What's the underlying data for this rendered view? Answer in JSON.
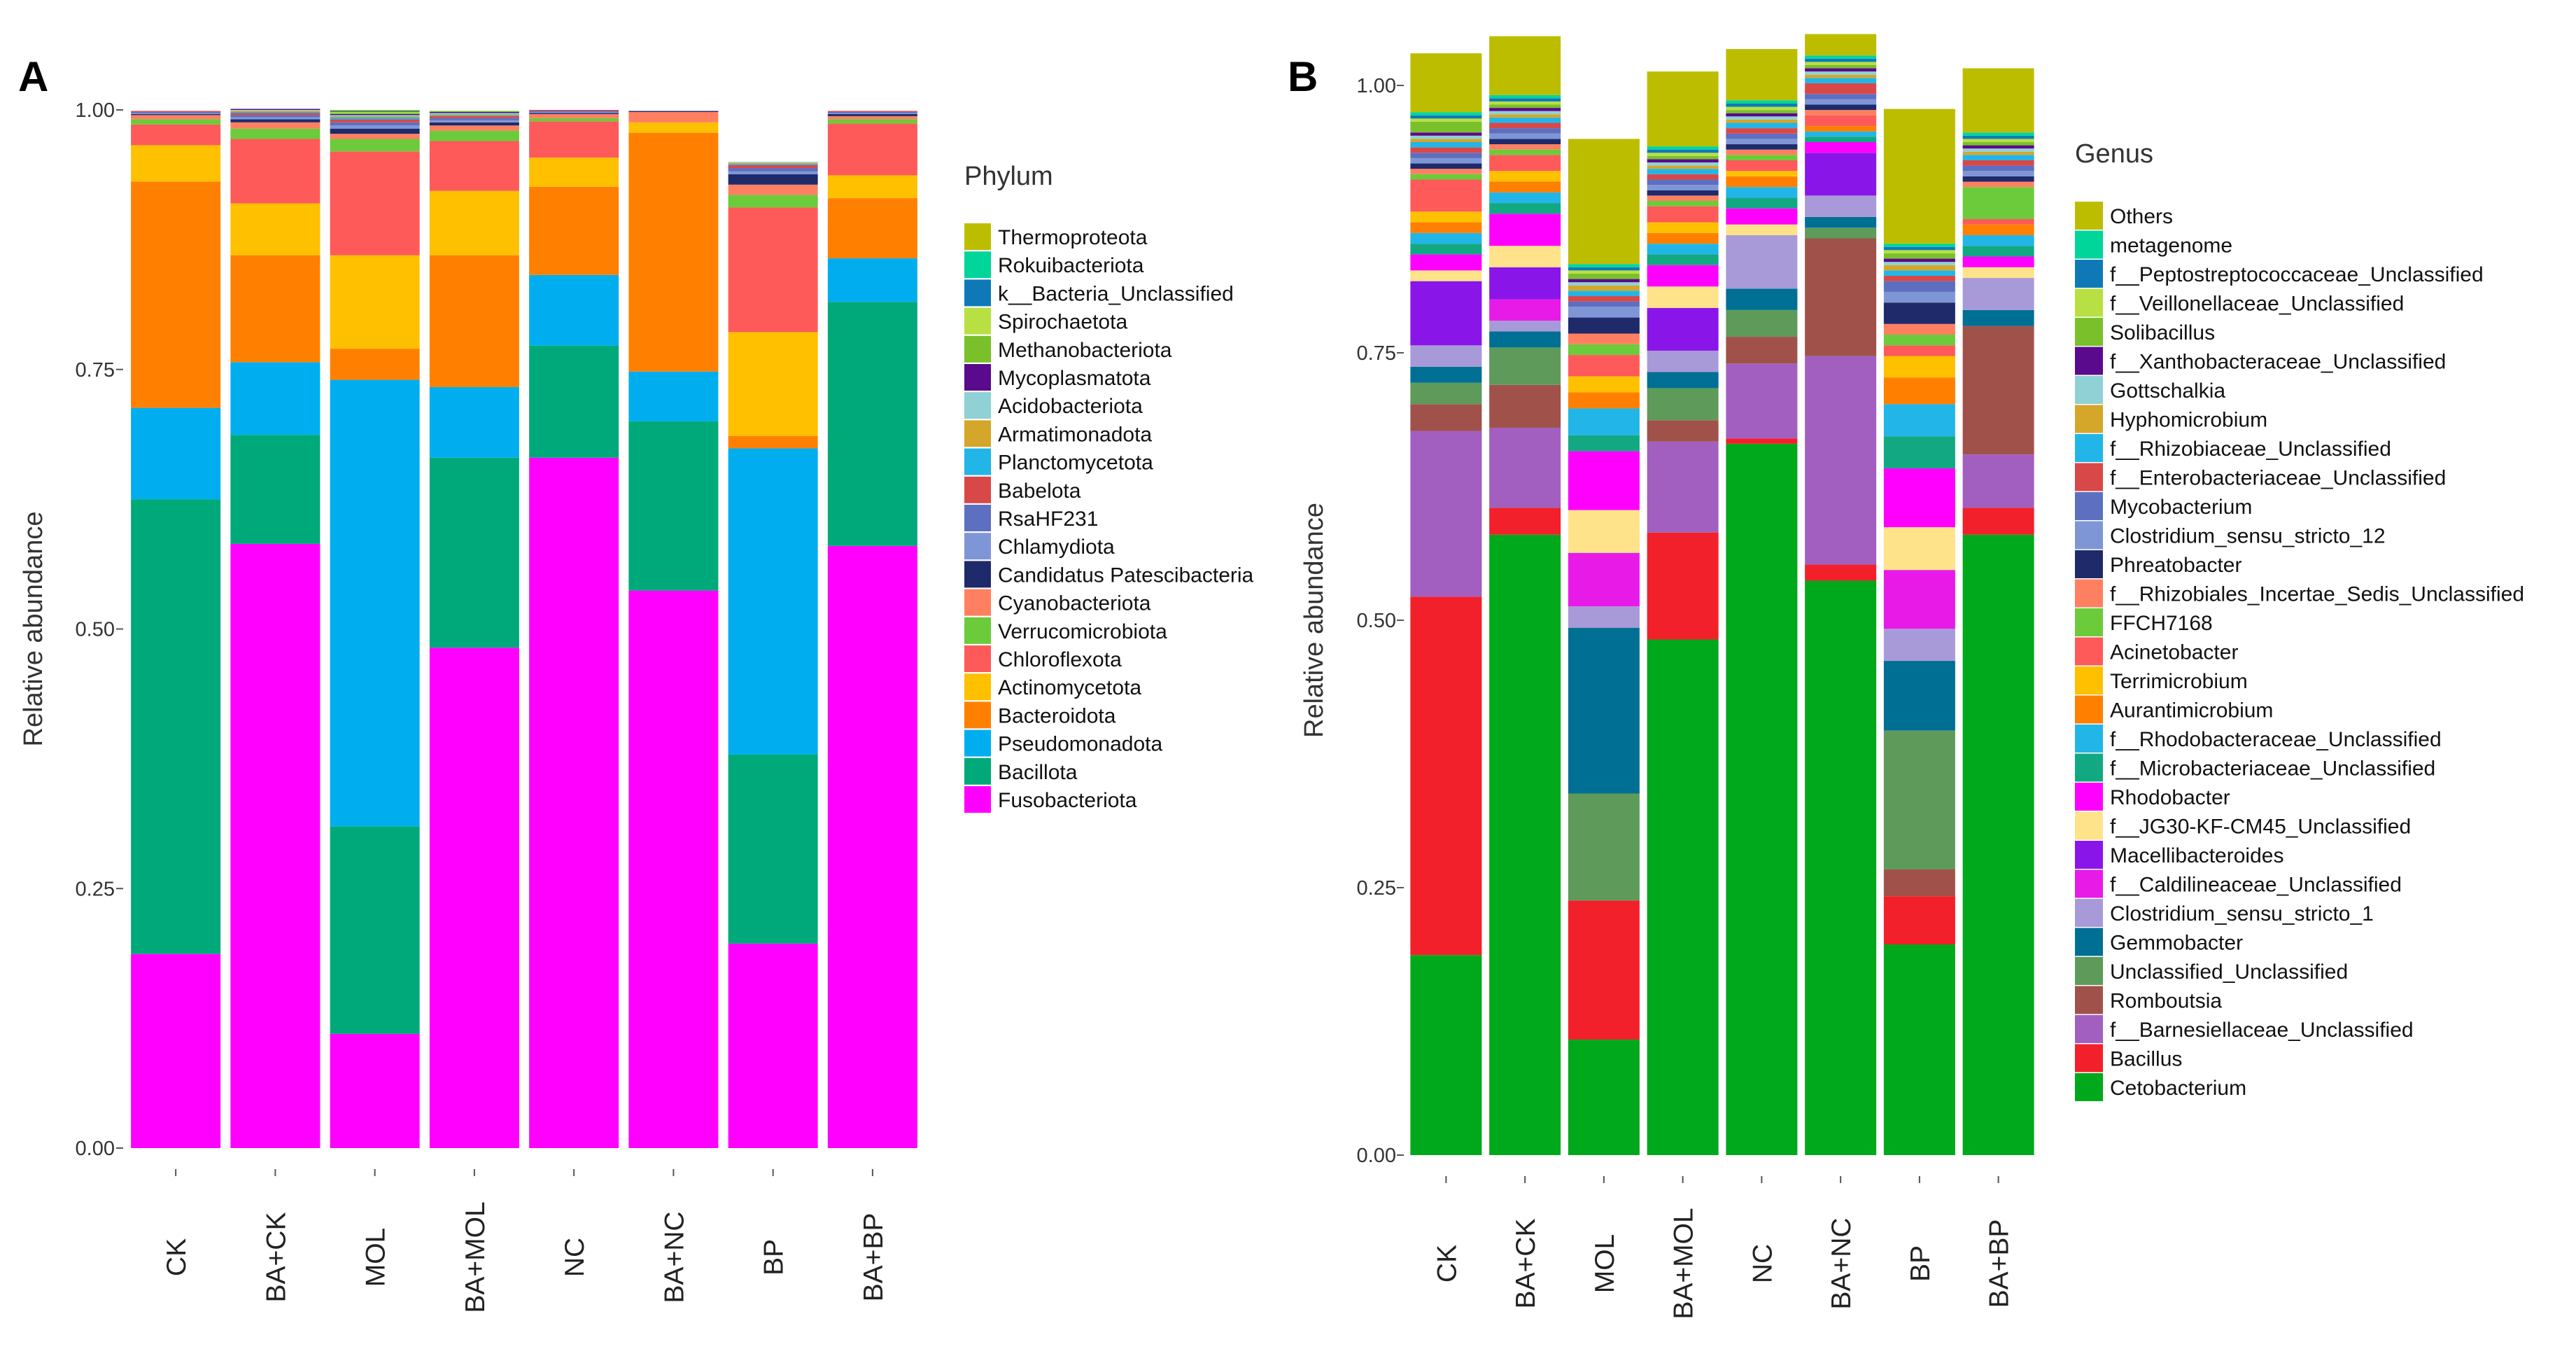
{
  "chart_data": [
    {
      "panel": "A",
      "type": "bar",
      "stacked": true,
      "ylabel": "Relative abundance",
      "ylim": [
        0,
        1
      ],
      "yticks": [
        "0.00",
        "0.25",
        "0.50",
        "0.75",
        "1.00"
      ],
      "categories": [
        "CK",
        "BA+CK",
        "MOL",
        "BA+MOL",
        "NC",
        "BA+NC",
        "BP",
        "BA+BP"
      ],
      "legend_title": "Phylum",
      "legend_position": "right",
      "series": [
        {
          "name": "Fusobacteriota",
          "color": "#FF00FF",
          "values": [
            0.187,
            0.582,
            0.11,
            0.482,
            0.665,
            0.537,
            0.197,
            0.58
          ]
        },
        {
          "name": "Bacillota",
          "color": "#00A97A",
          "values": [
            0.438,
            0.105,
            0.2,
            0.183,
            0.108,
            0.163,
            0.182,
            0.235
          ]
        },
        {
          "name": "Pseudomonadota",
          "color": "#00AEEF",
          "values": [
            0.088,
            0.07,
            0.43,
            0.068,
            0.068,
            0.048,
            0.295,
            0.042
          ]
        },
        {
          "name": "Bacteroidota",
          "color": "#FF8000",
          "values": [
            0.218,
            0.103,
            0.03,
            0.127,
            0.085,
            0.23,
            0.012,
            0.058
          ]
        },
        {
          "name": "Actinomycetota",
          "color": "#FFC000",
          "values": [
            0.035,
            0.05,
            0.09,
            0.062,
            0.028,
            0.01,
            0.1,
            0.022
          ]
        },
        {
          "name": "Chloroflexota",
          "color": "#FF5A5A",
          "values": [
            0.02,
            0.062,
            0.1,
            0.048,
            0.035,
            0.0,
            0.12,
            0.05
          ]
        },
        {
          "name": "Verrucomicrobiota",
          "color": "#6BCB3A",
          "values": [
            0.005,
            0.01,
            0.012,
            0.01,
            0.003,
            0.0,
            0.012,
            0.004
          ]
        },
        {
          "name": "Cyanobacteriota",
          "color": "#FF8060",
          "values": [
            0.004,
            0.006,
            0.005,
            0.005,
            0.004,
            0.01,
            0.01,
            0.003
          ]
        },
        {
          "name": "Candidatus Patescibacteria",
          "color": "#1F2A6B",
          "values": [
            0.001,
            0.003,
            0.005,
            0.003,
            0.001,
            0.001,
            0.01,
            0.002
          ]
        },
        {
          "name": "Chlamydiota",
          "color": "#7F96D6",
          "values": [
            0.001,
            0.002,
            0.003,
            0.002,
            0.001,
            0.0,
            0.003,
            0.001
          ]
        },
        {
          "name": "RsaHF231",
          "color": "#5C6FC0",
          "values": [
            0.001,
            0.002,
            0.003,
            0.002,
            0.001,
            0.0,
            0.003,
            0.001
          ]
        },
        {
          "name": "Babelota",
          "color": "#D94848",
          "values": [
            0.001,
            0.002,
            0.003,
            0.002,
            0.001,
            0.0,
            0.003,
            0.001
          ]
        },
        {
          "name": "Planctomycetota",
          "color": "#22B5E8",
          "values": [
            0.0,
            0.001,
            0.002,
            0.001,
            0.0,
            0.0,
            0.001,
            0.0
          ]
        },
        {
          "name": "Armatimonadota",
          "color": "#D4A62A",
          "values": [
            0.0,
            0.001,
            0.001,
            0.001,
            0.0,
            0.0,
            0.001,
            0.0
          ]
        },
        {
          "name": "Acidobacteriota",
          "color": "#8FD1D4",
          "values": [
            0.0,
            0.001,
            0.001,
            0.001,
            0.0,
            0.0,
            0.001,
            0.0
          ]
        },
        {
          "name": "Mycoplasmatota",
          "color": "#5A0A8C",
          "values": [
            0.0,
            0.001,
            0.001,
            0.001,
            0.0,
            0.0,
            0.0,
            0.0
          ]
        },
        {
          "name": "Methanobacteriota",
          "color": "#7AC02A",
          "values": [
            0.0,
            0.0,
            0.001,
            0.001,
            0.0,
            0.0,
            0.0,
            0.0
          ]
        },
        {
          "name": "Spirochaetota",
          "color": "#B8E042",
          "values": [
            0.0,
            0.0,
            0.001,
            0.0,
            0.0,
            0.0,
            0.0,
            0.0
          ]
        },
        {
          "name": "k__Bacteria_Unclassified",
          "color": "#0F79B8",
          "values": [
            0.0,
            0.0,
            0.001,
            0.0,
            0.0,
            0.0,
            0.0,
            0.0
          ]
        },
        {
          "name": "Rokuibacteriota",
          "color": "#00D59A",
          "values": [
            0.0,
            0.0,
            0.0,
            0.0,
            0.0,
            0.0,
            0.0,
            0.0
          ]
        },
        {
          "name": "Thermoproteota",
          "color": "#BDBD00",
          "values": [
            0.0,
            0.0,
            0.001,
            0.0,
            0.0,
            0.0,
            0.0,
            0.0
          ]
        }
      ]
    },
    {
      "panel": "B",
      "type": "bar",
      "stacked": true,
      "ylabel": "Relative abundance",
      "ylim": [
        0,
        1
      ],
      "yticks": [
        "0.00",
        "0.25",
        "0.50",
        "0.75",
        "1.00"
      ],
      "categories": [
        "CK",
        "BA+CK",
        "MOL",
        "BA+MOL",
        "NC",
        "BA+NC",
        "BP",
        "BA+BP"
      ],
      "legend_title": "Genus",
      "legend_position": "right",
      "series": [
        {
          "name": "Cetobacterium",
          "color": "#00A81B",
          "values": [
            0.187,
            0.58,
            0.108,
            0.482,
            0.665,
            0.537,
            0.197,
            0.58
          ]
        },
        {
          "name": "Bacillus",
          "color": "#F2202A",
          "values": [
            0.335,
            0.025,
            0.13,
            0.1,
            0.005,
            0.015,
            0.045,
            0.025
          ]
        },
        {
          "name": "f__Barnesiellaceae_Unclassified",
          "color": "#A35FC0",
          "values": [
            0.155,
            0.075,
            0.0,
            0.085,
            0.07,
            0.195,
            0.0,
            0.05
          ]
        },
        {
          "name": "Romboutsia",
          "color": "#A0524A",
          "values": [
            0.025,
            0.04,
            0.0,
            0.02,
            0.025,
            0.11,
            0.025,
            0.12
          ]
        },
        {
          "name": "Unclassified_Unclassified",
          "color": "#5E9A5A",
          "values": [
            0.02,
            0.035,
            0.1,
            0.03,
            0.025,
            0.01,
            0.13,
            0.0
          ]
        },
        {
          "name": "Gemmobacter",
          "color": "#006F94",
          "values": [
            0.015,
            0.015,
            0.155,
            0.015,
            0.02,
            0.01,
            0.065,
            0.015
          ]
        },
        {
          "name": "Clostridium_sensu_stricto_1",
          "color": "#A89AD8",
          "values": [
            0.02,
            0.01,
            0.02,
            0.02,
            0.05,
            0.02,
            0.03,
            0.03
          ]
        },
        {
          "name": "f__Caldilineaceae_Unclassified",
          "color": "#E81AE8",
          "values": [
            0.0,
            0.02,
            0.05,
            0.0,
            0.0,
            0.0,
            0.055,
            0.0
          ]
        },
        {
          "name": "Macellibacteroides",
          "color": "#8A15E8",
          "values": [
            0.06,
            0.03,
            0.0,
            0.04,
            0.0,
            0.04,
            0.0,
            0.0
          ]
        },
        {
          "name": "f__JG30-KF-CM45_Unclassified",
          "color": "#FFE38A",
          "values": [
            0.01,
            0.02,
            0.04,
            0.02,
            0.01,
            0.0,
            0.04,
            0.01
          ]
        },
        {
          "name": "Rhodobacter",
          "color": "#FF00FF",
          "values": [
            0.015,
            0.03,
            0.055,
            0.02,
            0.015,
            0.01,
            0.055,
            0.01
          ]
        },
        {
          "name": "f__Microbacteriaceae_Unclassified",
          "color": "#12A882",
          "values": [
            0.01,
            0.01,
            0.015,
            0.01,
            0.01,
            0.005,
            0.03,
            0.01
          ]
        },
        {
          "name": "f__Rhodobacteraceae_Unclassified",
          "color": "#22B5E8",
          "values": [
            0.01,
            0.01,
            0.025,
            0.01,
            0.01,
            0.005,
            0.03,
            0.01
          ]
        },
        {
          "name": "Aurantimicrobium",
          "color": "#FF8000",
          "values": [
            0.01,
            0.01,
            0.015,
            0.01,
            0.01,
            0.005,
            0.025,
            0.01
          ]
        },
        {
          "name": "Terrimicrobium",
          "color": "#FFC000",
          "values": [
            0.01,
            0.01,
            0.015,
            0.01,
            0.005,
            0.0,
            0.02,
            0.0
          ]
        },
        {
          "name": "Acinetobacter",
          "color": "#FF5A5A",
          "values": [
            0.03,
            0.015,
            0.02,
            0.015,
            0.01,
            0.01,
            0.01,
            0.005
          ]
        },
        {
          "name": "FFCH7168",
          "color": "#6BCB3A",
          "values": [
            0.005,
            0.005,
            0.01,
            0.005,
            0.005,
            0.0,
            0.01,
            0.03
          ]
        },
        {
          "name": "f__Rhizobiales_Incertae_Sedis_Unclassified",
          "color": "#FF8060",
          "values": [
            0.005,
            0.005,
            0.01,
            0.005,
            0.005,
            0.005,
            0.01,
            0.005
          ]
        },
        {
          "name": "Phreatobacter",
          "color": "#1F2A6B",
          "values": [
            0.005,
            0.005,
            0.015,
            0.005,
            0.005,
            0.005,
            0.02,
            0.005
          ]
        },
        {
          "name": "Clostridium_sensu_stricto_12",
          "color": "#7F96D6",
          "values": [
            0.005,
            0.005,
            0.01,
            0.005,
            0.005,
            0.005,
            0.01,
            0.005
          ]
        },
        {
          "name": "Mycobacterium",
          "color": "#5C6FC0",
          "values": [
            0.005,
            0.005,
            0.005,
            0.005,
            0.005,
            0.005,
            0.01,
            0.005
          ]
        },
        {
          "name": "f__Enterobacteriaceae_Unclassified",
          "color": "#D94848",
          "values": [
            0.005,
            0.005,
            0.005,
            0.005,
            0.005,
            0.01,
            0.005,
            0.005
          ]
        },
        {
          "name": "f__Rhizobiaceae_Unclassified",
          "color": "#22B5E8",
          "values": [
            0.005,
            0.005,
            0.005,
            0.005,
            0.005,
            0.005,
            0.005,
            0.005
          ]
        },
        {
          "name": "Hyphomicrobium",
          "color": "#D4A62A",
          "values": [
            0.003,
            0.003,
            0.005,
            0.003,
            0.003,
            0.003,
            0.005,
            0.003
          ]
        },
        {
          "name": "Gottschalkia",
          "color": "#8FD1D4",
          "values": [
            0.003,
            0.003,
            0.003,
            0.003,
            0.003,
            0.003,
            0.003,
            0.003
          ]
        },
        {
          "name": "f__Xanthobacteraceae_Unclassified",
          "color": "#5A0A8C",
          "values": [
            0.003,
            0.003,
            0.003,
            0.003,
            0.003,
            0.003,
            0.003,
            0.003
          ]
        },
        {
          "name": "Solibacillus",
          "color": "#7AC02A",
          "values": [
            0.01,
            0.003,
            0.005,
            0.003,
            0.003,
            0.003,
            0.005,
            0.003
          ]
        },
        {
          "name": "f__Veillonellaceae_Unclassified",
          "color": "#B8E042",
          "values": [
            0.003,
            0.003,
            0.003,
            0.003,
            0.003,
            0.003,
            0.003,
            0.003
          ]
        },
        {
          "name": "f__Peptostreptococcaceae_Unclassified",
          "color": "#0F79B8",
          "values": [
            0.003,
            0.003,
            0.003,
            0.003,
            0.003,
            0.003,
            0.003,
            0.003
          ]
        },
        {
          "name": "metagenome",
          "color": "#00D59A",
          "values": [
            0.003,
            0.003,
            0.003,
            0.003,
            0.003,
            0.003,
            0.003,
            0.003
          ]
        },
        {
          "name": "Others",
          "color": "#BDBD00",
          "values": [
            0.055,
            0.055,
            0.117,
            0.07,
            0.048,
            0.02,
            0.126,
            0.06
          ]
        }
      ]
    }
  ],
  "panels": {
    "a": {
      "letter": "A"
    },
    "b": {
      "letter": "B"
    }
  }
}
